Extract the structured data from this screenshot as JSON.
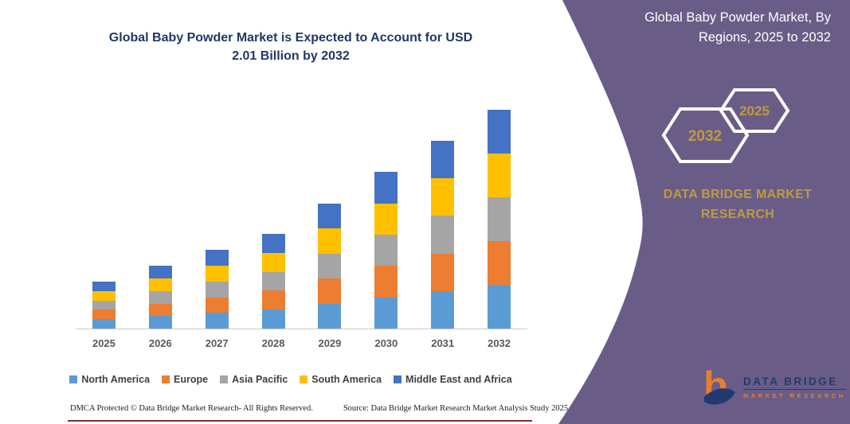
{
  "main": {
    "title_line1": "Global Baby Powder Market is Expected to Account for USD",
    "title_line2": "2.01 Billion by 2032"
  },
  "chart_data": {
    "type": "bar",
    "subtype": "stacked",
    "title": "Global Baby Powder Market is Expected to Account for USD 2.01 Billion by 2032",
    "unit": "USD billion (estimated from bar heights; 2032 total = 2.01)",
    "categories": [
      "2025",
      "2026",
      "2027",
      "2028",
      "2029",
      "2030",
      "2031",
      "2032"
    ],
    "series": [
      {
        "name": "North America",
        "color": "#5B9BD5",
        "values": [
          0.086,
          0.115,
          0.144,
          0.174,
          0.23,
          0.287,
          0.345,
          0.402
        ]
      },
      {
        "name": "Europe",
        "color": "#ED7D31",
        "values": [
          0.086,
          0.115,
          0.144,
          0.174,
          0.23,
          0.287,
          0.345,
          0.402
        ]
      },
      {
        "name": "Asia Pacific",
        "color": "#A5A5A5",
        "values": [
          0.086,
          0.115,
          0.144,
          0.174,
          0.23,
          0.287,
          0.345,
          0.402
        ]
      },
      {
        "name": "South America",
        "color": "#FFC000",
        "values": [
          0.086,
          0.115,
          0.144,
          0.174,
          0.23,
          0.287,
          0.345,
          0.402
        ]
      },
      {
        "name": "Middle East and Africa",
        "color": "#4472C4",
        "values": [
          0.086,
          0.115,
          0.144,
          0.174,
          0.23,
          0.287,
          0.345,
          0.402
        ]
      }
    ],
    "totals": [
      0.43,
      0.575,
      0.72,
      0.87,
      1.15,
      1.435,
      1.725,
      2.01
    ],
    "ylim": [
      0,
      2.2
    ],
    "y_axis_visible": false,
    "gridlines": false,
    "legend_position": "bottom"
  },
  "footer": {
    "dmca": "DMCA Protected © Data Bridge Market Research-  All Rights Reserved.",
    "source": "Source: Data Bridge Market Research  Market Analysis Study 2025"
  },
  "panel": {
    "title_line1": "Global Baby Powder Market, By",
    "title_line2": "Regions, 2025 to 2032",
    "hexagon_left_label": "2032",
    "hexagon_right_label": "2025",
    "brand_line1": "DATA BRIDGE MARKET",
    "brand_line2": "RESEARCH",
    "logo_title": "DATA BRIDGE",
    "logo_subtitle": "MARKET RESEARCH"
  },
  "colors": {
    "panel_purple": "#695D88",
    "gold": "#C09A3E",
    "title_navy": "#1F3864",
    "axis_label_gray": "#595959",
    "footer_rule_maroon": "#7E3131",
    "logo_navy": "#203A70",
    "logo_orange": "#E87E2E"
  }
}
